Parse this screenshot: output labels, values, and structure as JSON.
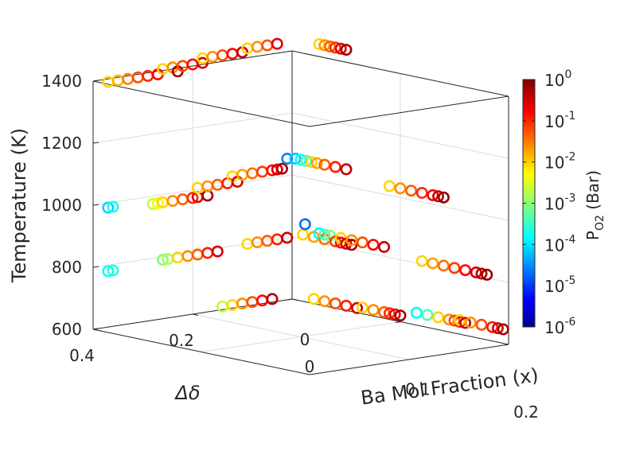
{
  "chart_data": {
    "type": "scatter",
    "projection": "3d",
    "marker": "open-circle",
    "xlabel": "Ba Mol Fraction (x)",
    "ylabel": "Δδ",
    "zlabel": "Temperature (K)",
    "xlim": [
      0,
      0.2
    ],
    "ylim": [
      0,
      0.4
    ],
    "zlim": [
      600,
      1400
    ],
    "x_ticks": [
      "0",
      "0.1",
      "0.2"
    ],
    "y_ticks": [
      "0",
      "0.2",
      "0.4"
    ],
    "z_ticks": [
      "600",
      "800",
      "1000",
      "1200",
      "1400"
    ],
    "grid": true,
    "colorbar": {
      "label_main": "P",
      "label_sub": "O2",
      "label_unit": " (Bar)",
      "scale": "log",
      "colormap": "jet",
      "range": [
        -6,
        0
      ],
      "tick_base": "10",
      "tick_exponents": [
        "-6",
        "-5",
        "-4",
        "-3",
        "-2",
        "-1",
        "0"
      ]
    },
    "points": [
      {
        "x": 0.0,
        "y": 0.37,
        "z": 1390,
        "c": -2.0
      },
      {
        "x": 0.0,
        "y": 0.35,
        "z": 1390,
        "c": -1.8
      },
      {
        "x": 0.0,
        "y": 0.33,
        "z": 1390,
        "c": -1.5
      },
      {
        "x": 0.0,
        "y": 0.31,
        "z": 1390,
        "c": -1.2
      },
      {
        "x": 0.0,
        "y": 0.29,
        "z": 1390,
        "c": -1.0
      },
      {
        "x": 0.0,
        "y": 0.27,
        "z": 1390,
        "c": -0.7
      },
      {
        "x": 0.0,
        "y": 0.23,
        "z": 1390,
        "c": -0.2
      },
      {
        "x": 0.0,
        "y": 0.26,
        "z": 1405,
        "c": -2.0
      },
      {
        "x": 0.0,
        "y": 0.24,
        "z": 1405,
        "c": -1.6
      },
      {
        "x": 0.0,
        "y": 0.22,
        "z": 1405,
        "c": -1.2
      },
      {
        "x": 0.0,
        "y": 0.2,
        "z": 1405,
        "c": -0.8
      },
      {
        "x": 0.0,
        "y": 0.18,
        "z": 1405,
        "c": -0.5
      },
      {
        "x": 0.0,
        "y": 0.18,
        "z": 1420,
        "c": -2.0
      },
      {
        "x": 0.0,
        "y": 0.16,
        "z": 1420,
        "c": -1.6
      },
      {
        "x": 0.0,
        "y": 0.14,
        "z": 1420,
        "c": -1.2
      },
      {
        "x": 0.0,
        "y": 0.12,
        "z": 1420,
        "c": -0.8
      },
      {
        "x": 0.0,
        "y": 0.1,
        "z": 1420,
        "c": -0.4
      },
      {
        "x": 0.0,
        "y": 0.09,
        "z": 1430,
        "c": -2.0
      },
      {
        "x": 0.0,
        "y": 0.07,
        "z": 1430,
        "c": -1.6
      },
      {
        "x": 0.0,
        "y": 0.05,
        "z": 1430,
        "c": -1.2
      },
      {
        "x": 0.0,
        "y": 0.03,
        "z": 1430,
        "c": -0.6
      },
      {
        "x": 0.025,
        "y": 0.0,
        "z": 1440,
        "c": -2.0
      },
      {
        "x": 0.03,
        "y": 0.0,
        "z": 1440,
        "c": -1.6
      },
      {
        "x": 0.035,
        "y": 0.0,
        "z": 1440,
        "c": -1.3
      },
      {
        "x": 0.04,
        "y": 0.0,
        "z": 1440,
        "c": -1.0
      },
      {
        "x": 0.045,
        "y": 0.0,
        "z": 1440,
        "c": -0.6
      },
      {
        "x": 0.05,
        "y": 0.0,
        "z": 1440,
        "c": -0.2
      },
      {
        "x": 0.0,
        "y": 0.37,
        "z": 985,
        "c": -4.0
      },
      {
        "x": 0.0,
        "y": 0.36,
        "z": 985,
        "c": -3.6
      },
      {
        "x": 0.0,
        "y": 0.28,
        "z": 975,
        "c": -2.6
      },
      {
        "x": 0.0,
        "y": 0.27,
        "z": 975,
        "c": -2.2
      },
      {
        "x": 0.0,
        "y": 0.26,
        "z": 975,
        "c": -2.0
      },
      {
        "x": 0.0,
        "y": 0.24,
        "z": 975,
        "c": -1.6
      },
      {
        "x": 0.0,
        "y": 0.22,
        "z": 975,
        "c": -1.3
      },
      {
        "x": 0.0,
        "y": 0.2,
        "z": 975,
        "c": -1.0
      },
      {
        "x": 0.0,
        "y": 0.19,
        "z": 975,
        "c": -0.6
      },
      {
        "x": 0.0,
        "y": 0.17,
        "z": 975,
        "c": -0.2
      },
      {
        "x": 0.0,
        "y": 0.19,
        "z": 1005,
        "c": -2.0
      },
      {
        "x": 0.0,
        "y": 0.17,
        "z": 1005,
        "c": -1.6
      },
      {
        "x": 0.0,
        "y": 0.15,
        "z": 1005,
        "c": -1.3
      },
      {
        "x": 0.0,
        "y": 0.13,
        "z": 1005,
        "c": -0.9
      },
      {
        "x": 0.0,
        "y": 0.11,
        "z": 1005,
        "c": -0.5
      },
      {
        "x": 0.0,
        "y": 0.12,
        "z": 1025,
        "c": -2.0
      },
      {
        "x": 0.0,
        "y": 0.1,
        "z": 1025,
        "c": -1.7
      },
      {
        "x": 0.0,
        "y": 0.08,
        "z": 1025,
        "c": -1.4
      },
      {
        "x": 0.0,
        "y": 0.06,
        "z": 1025,
        "c": -1.1
      },
      {
        "x": 0.0,
        "y": 0.04,
        "z": 1025,
        "c": -0.8
      },
      {
        "x": 0.0,
        "y": 0.03,
        "z": 1025,
        "c": -0.5
      },
      {
        "x": 0.0,
        "y": 0.02,
        "z": 1025,
        "c": -0.2
      },
      {
        "x": 0.0,
        "y": 0.01,
        "z": 1055,
        "c": -4.5
      },
      {
        "x": 0.003,
        "y": 0.0,
        "z": 1055,
        "c": -4.1
      },
      {
        "x": 0.008,
        "y": 0.0,
        "z": 1055,
        "c": -3.7
      },
      {
        "x": 0.013,
        "y": 0.0,
        "z": 1055,
        "c": -3.3
      },
      {
        "x": 0.018,
        "y": 0.0,
        "z": 1055,
        "c": -2.0
      },
      {
        "x": 0.023,
        "y": 0.0,
        "z": 1055,
        "c": -1.7
      },
      {
        "x": 0.03,
        "y": 0.0,
        "z": 1055,
        "c": -1.3
      },
      {
        "x": 0.04,
        "y": 0.0,
        "z": 1055,
        "c": -0.9
      },
      {
        "x": 0.05,
        "y": 0.0,
        "z": 1055,
        "c": -0.4
      },
      {
        "x": 0.09,
        "y": 0.0,
        "z": 1030,
        "c": -2.0
      },
      {
        "x": 0.1,
        "y": 0.0,
        "z": 1030,
        "c": -1.6
      },
      {
        "x": 0.11,
        "y": 0.0,
        "z": 1030,
        "c": -1.3
      },
      {
        "x": 0.12,
        "y": 0.0,
        "z": 1030,
        "c": -1.0
      },
      {
        "x": 0.13,
        "y": 0.0,
        "z": 1030,
        "c": -0.7
      },
      {
        "x": 0.135,
        "y": 0.0,
        "z": 1030,
        "c": -0.4
      },
      {
        "x": 0.14,
        "y": 0.0,
        "z": 1030,
        "c": -0.1
      },
      {
        "x": 0.0,
        "y": 0.37,
        "z": 780,
        "c": -3.7
      },
      {
        "x": 0.0,
        "y": 0.36,
        "z": 780,
        "c": -3.5
      },
      {
        "x": 0.0,
        "y": 0.26,
        "z": 790,
        "c": -3.0
      },
      {
        "x": 0.0,
        "y": 0.25,
        "z": 790,
        "c": -2.7
      },
      {
        "x": 0.0,
        "y": 0.23,
        "z": 790,
        "c": -2.0
      },
      {
        "x": 0.0,
        "y": 0.21,
        "z": 790,
        "c": -1.6
      },
      {
        "x": 0.0,
        "y": 0.19,
        "z": 790,
        "c": -1.3
      },
      {
        "x": 0.0,
        "y": 0.17,
        "z": 790,
        "c": -0.9
      },
      {
        "x": 0.0,
        "y": 0.15,
        "z": 790,
        "c": -0.5
      },
      {
        "x": 0.0,
        "y": 0.09,
        "z": 800,
        "c": -2.0
      },
      {
        "x": 0.0,
        "y": 0.07,
        "z": 800,
        "c": -1.6
      },
      {
        "x": 0.0,
        "y": 0.05,
        "z": 800,
        "c": -1.3
      },
      {
        "x": 0.0,
        "y": 0.03,
        "z": 800,
        "c": -0.9
      },
      {
        "x": 0.0,
        "y": 0.01,
        "z": 800,
        "c": -0.4
      },
      {
        "x": 0.01,
        "y": 0.0,
        "z": 815,
        "c": -2.0
      },
      {
        "x": 0.02,
        "y": 0.0,
        "z": 815,
        "c": -1.7
      },
      {
        "x": 0.03,
        "y": 0.0,
        "z": 815,
        "c": -1.4
      },
      {
        "x": 0.04,
        "y": 0.0,
        "z": 815,
        "c": -1.1
      },
      {
        "x": 0.045,
        "y": 0.0,
        "z": 815,
        "c": -0.8
      },
      {
        "x": 0.05,
        "y": 0.0,
        "z": 815,
        "c": -0.5
      },
      {
        "x": 0.055,
        "y": 0.0,
        "z": 815,
        "c": -0.2
      },
      {
        "x": 0.012,
        "y": 0.0,
        "z": 850,
        "c": -4.6
      },
      {
        "x": 0.025,
        "y": 0.0,
        "z": 830,
        "c": -3.8
      },
      {
        "x": 0.03,
        "y": 0.0,
        "z": 830,
        "c": -3.3
      },
      {
        "x": 0.035,
        "y": 0.0,
        "z": 830,
        "c": -3.0
      },
      {
        "x": 0.045,
        "y": 0.0,
        "z": 830,
        "c": -2.0
      },
      {
        "x": 0.055,
        "y": 0.0,
        "z": 830,
        "c": -1.6
      },
      {
        "x": 0.065,
        "y": 0.0,
        "z": 830,
        "c": -1.2
      },
      {
        "x": 0.075,
        "y": 0.0,
        "z": 830,
        "c": -0.8
      },
      {
        "x": 0.085,
        "y": 0.0,
        "z": 830,
        "c": -0.4
      },
      {
        "x": 0.12,
        "y": 0.0,
        "z": 810,
        "c": -2.0
      },
      {
        "x": 0.13,
        "y": 0.0,
        "z": 810,
        "c": -1.7
      },
      {
        "x": 0.14,
        "y": 0.0,
        "z": 810,
        "c": -1.4
      },
      {
        "x": 0.15,
        "y": 0.0,
        "z": 810,
        "c": -1.1
      },
      {
        "x": 0.16,
        "y": 0.0,
        "z": 810,
        "c": -0.8
      },
      {
        "x": 0.17,
        "y": 0.0,
        "z": 810,
        "c": -0.5
      },
      {
        "x": 0.175,
        "y": 0.0,
        "z": 810,
        "c": -0.3
      },
      {
        "x": 0.18,
        "y": 0.0,
        "z": 810,
        "c": -0.1
      },
      {
        "x": 0.0,
        "y": 0.14,
        "z": 610,
        "c": -2.6
      },
      {
        "x": 0.0,
        "y": 0.12,
        "z": 610,
        "c": -2.0
      },
      {
        "x": 0.0,
        "y": 0.1,
        "z": 610,
        "c": -1.6
      },
      {
        "x": 0.0,
        "y": 0.08,
        "z": 610,
        "c": -1.2
      },
      {
        "x": 0.0,
        "y": 0.06,
        "z": 610,
        "c": -0.8
      },
      {
        "x": 0.0,
        "y": 0.04,
        "z": 610,
        "c": -0.3
      },
      {
        "x": 0.02,
        "y": 0.0,
        "z": 615,
        "c": -2.0
      },
      {
        "x": 0.03,
        "y": 0.0,
        "z": 615,
        "c": -1.6
      },
      {
        "x": 0.04,
        "y": 0.0,
        "z": 615,
        "c": -1.2
      },
      {
        "x": 0.05,
        "y": 0.0,
        "z": 615,
        "c": -0.9
      },
      {
        "x": 0.06,
        "y": 0.0,
        "z": 615,
        "c": -0.5
      },
      {
        "x": 0.065,
        "y": 0.0,
        "z": 620,
        "c": -2.0
      },
      {
        "x": 0.075,
        "y": 0.0,
        "z": 620,
        "c": -1.6
      },
      {
        "x": 0.085,
        "y": 0.0,
        "z": 620,
        "c": -1.3
      },
      {
        "x": 0.09,
        "y": 0.0,
        "z": 620,
        "c": -1.0
      },
      {
        "x": 0.095,
        "y": 0.0,
        "z": 620,
        "c": -0.6
      },
      {
        "x": 0.1,
        "y": 0.0,
        "z": 620,
        "c": -0.2
      },
      {
        "x": 0.115,
        "y": 0.0,
        "z": 640,
        "c": -3.8
      },
      {
        "x": 0.125,
        "y": 0.0,
        "z": 640,
        "c": -3.3
      },
      {
        "x": 0.135,
        "y": 0.0,
        "z": 640,
        "c": -2.0
      },
      {
        "x": 0.145,
        "y": 0.0,
        "z": 640,
        "c": -1.6
      },
      {
        "x": 0.15,
        "y": 0.0,
        "z": 640,
        "c": -1.2
      },
      {
        "x": 0.155,
        "y": 0.0,
        "z": 640,
        "c": -0.8
      },
      {
        "x": 0.16,
        "y": 0.0,
        "z": 640,
        "c": -0.4
      },
      {
        "x": 0.155,
        "y": 0.0,
        "z": 645,
        "c": -2.0
      },
      {
        "x": 0.165,
        "y": 0.0,
        "z": 645,
        "c": -1.6
      },
      {
        "x": 0.175,
        "y": 0.0,
        "z": 645,
        "c": -1.2
      },
      {
        "x": 0.185,
        "y": 0.0,
        "z": 645,
        "c": -0.9
      },
      {
        "x": 0.19,
        "y": 0.0,
        "z": 645,
        "c": -0.5
      },
      {
        "x": 0.195,
        "y": 0.0,
        "z": 645,
        "c": -0.2
      }
    ]
  }
}
